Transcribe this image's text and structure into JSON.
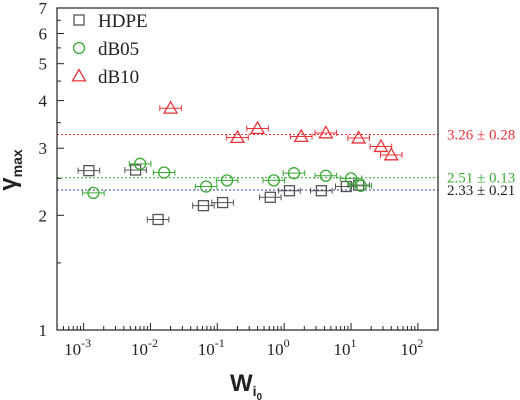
{
  "chart_data": {
    "type": "scatter",
    "title": "",
    "xlabel": {
      "main": "W",
      "sub": "i",
      "subsub": "0"
    },
    "ylabel": {
      "main": "γ",
      "sub": "max"
    },
    "x_scale": "log",
    "y_scale": "log",
    "xlim": [
      0.0004,
      200
    ],
    "ylim": [
      1,
      7
    ],
    "x_ticks": [
      0.001,
      0.01,
      0.1,
      1,
      10,
      100
    ],
    "x_tick_labels": [
      {
        "base": "10",
        "exp": "-3"
      },
      {
        "base": "10",
        "exp": "-2"
      },
      {
        "base": "10",
        "exp": "-1"
      },
      {
        "base": "10",
        "exp": "0"
      },
      {
        "base": "10",
        "exp": "1"
      },
      {
        "base": "10",
        "exp": "2"
      }
    ],
    "y_ticks": [
      1,
      2,
      3,
      4,
      5,
      6,
      7
    ],
    "y_tick_labels": [
      "1",
      "2",
      "3",
      "4",
      "5",
      "6",
      "7"
    ],
    "grid": false,
    "legend_position": "top-left",
    "series": [
      {
        "name": "HDPE",
        "marker": "square",
        "color": "#555555",
        "points": [
          {
            "x": 0.0012,
            "y": 2.62
          },
          {
            "x": 0.006,
            "y": 2.63
          },
          {
            "x": 0.013,
            "y": 1.95
          },
          {
            "x": 0.062,
            "y": 2.12
          },
          {
            "x": 0.12,
            "y": 2.16
          },
          {
            "x": 0.62,
            "y": 2.23
          },
          {
            "x": 1.2,
            "y": 2.32
          },
          {
            "x": 3.6,
            "y": 2.32
          },
          {
            "x": 8.5,
            "y": 2.38
          },
          {
            "x": 13,
            "y": 2.4
          }
        ]
      },
      {
        "name": "dB05",
        "marker": "circle",
        "color": "#3aaa35",
        "points": [
          {
            "x": 0.0014,
            "y": 2.29
          },
          {
            "x": 0.007,
            "y": 2.73
          },
          {
            "x": 0.016,
            "y": 2.59
          },
          {
            "x": 0.068,
            "y": 2.38
          },
          {
            "x": 0.14,
            "y": 2.47
          },
          {
            "x": 0.7,
            "y": 2.47
          },
          {
            "x": 1.4,
            "y": 2.58
          },
          {
            "x": 4.2,
            "y": 2.54
          },
          {
            "x": 10,
            "y": 2.5
          },
          {
            "x": 14,
            "y": 2.39
          }
        ]
      },
      {
        "name": "dB10",
        "marker": "triangle",
        "color": "#e8353a",
        "points": [
          {
            "x": 0.02,
            "y": 3.82
          },
          {
            "x": 0.2,
            "y": 3.2
          },
          {
            "x": 0.4,
            "y": 3.38
          },
          {
            "x": 1.8,
            "y": 3.22
          },
          {
            "x": 4.2,
            "y": 3.29
          },
          {
            "x": 13,
            "y": 3.19
          },
          {
            "x": 28,
            "y": 3.03
          },
          {
            "x": 40,
            "y": 2.88
          }
        ]
      }
    ],
    "reference_lines": [
      {
        "y": 3.26,
        "color": "#e8353a",
        "label": "3.26 ± 0.28"
      },
      {
        "y": 2.51,
        "color": "#3aaa35",
        "label": "2.51 ± 0.13"
      },
      {
        "y": 2.33,
        "color": "#3b3f9a",
        "label": "2.33 ± 0.21",
        "label_color": "#222222"
      }
    ]
  }
}
